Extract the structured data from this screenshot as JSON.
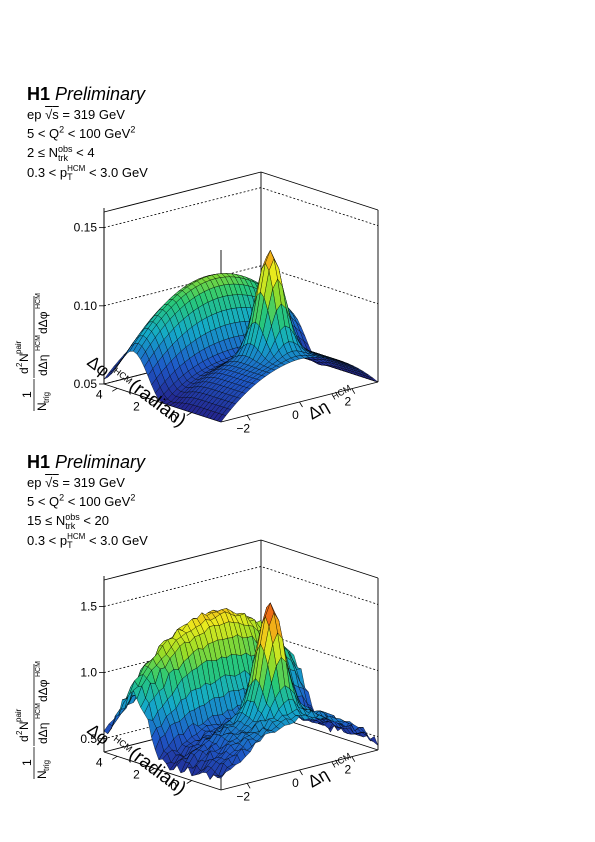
{
  "chart_data": [
    {
      "type": "surface3d",
      "experiment": "H1",
      "status": "Preliminary",
      "lines": {
        "beam": "ep",
        "sqrt_s_label": "s",
        "sqrt_s_value": "= 319 GeV",
        "q2_pre": "5 < Q",
        "q2_exp": "2",
        "q2_post": " < 100 GeV",
        "q2_unit_exp": "2",
        "ntrk_pre": "2 ≤ N",
        "ntrk_sup": "obs",
        "ntrk_sub": "trk",
        "ntrk_post": " < 4",
        "pt_pre": "0.3 < p",
        "pt_sup": "HCM",
        "pt_sub": "T",
        "pt_post": " < 3.0 GeV"
      },
      "zlabel": "1/N_trig d²N^pair/dΔη^HCM dΔφ^HCM",
      "xlabel": "Δη",
      "xlabel_sup": "HCM",
      "ylabel": "Δφ",
      "ylabel_sup": "HCM",
      "ylabel_unit": "(radian)",
      "x_ticks": [
        "−2",
        "0",
        "2"
      ],
      "x_tick_values": [
        -2,
        0,
        2
      ],
      "y_ticks": [
        "0",
        "2",
        "4"
      ],
      "y_tick_values": [
        0,
        2,
        4
      ],
      "z_ticks": [
        "0.05",
        "0.10",
        "0.15"
      ],
      "z_tick_values": [
        0.05,
        0.1,
        0.15
      ],
      "xlim": [
        -3.0,
        3.0
      ],
      "ylim": [
        -1.5708,
        4.7124
      ],
      "zlim": [
        0.05,
        0.16
      ],
      "model": {
        "base": 0.077,
        "peak_height": 0.064,
        "peak_sx": 0.38,
        "peak_sy": 0.5,
        "ridge_height": 0.036,
        "ridge_center": 3.1416,
        "ridge_sy": 0.75,
        "eta_falloff": 0.012,
        "noise": 0.0
      }
    },
    {
      "type": "surface3d",
      "experiment": "H1",
      "status": "Preliminary",
      "lines": {
        "beam": "ep",
        "sqrt_s_label": "s",
        "sqrt_s_value": "= 319 GeV",
        "q2_pre": "5 < Q",
        "q2_exp": "2",
        "q2_post": " < 100 GeV",
        "q2_unit_exp": "2",
        "ntrk_pre": "15 ≤ N",
        "ntrk_sup": "obs",
        "ntrk_sub": "trk",
        "ntrk_post": " < 20",
        "pt_pre": "0.3 < p",
        "pt_sup": "HCM",
        "pt_sub": "T",
        "pt_post": " < 3.0 GeV"
      },
      "zlabel": "1/N_trig d²N^pair/dΔη^HCM dΔφ^HCM",
      "xlabel": "Δη",
      "xlabel_sup": "HCM",
      "ylabel": "Δφ",
      "ylabel_sup": "HCM",
      "ylabel_unit": "(radian)",
      "x_ticks": [
        "−2",
        "0",
        "2"
      ],
      "x_tick_values": [
        -2,
        0,
        2
      ],
      "y_ticks": [
        "0",
        "2",
        "4"
      ],
      "y_tick_values": [
        0,
        2,
        4
      ],
      "z_ticks": [
        "0.5",
        "1.0",
        "1.5"
      ],
      "z_tick_values": [
        0.5,
        1.0,
        1.5
      ],
      "xlim": [
        -3.0,
        3.0
      ],
      "ylim": [
        -1.5708,
        4.7124
      ],
      "zlim": [
        0.4,
        1.7
      ],
      "model": {
        "base": 0.78,
        "peak_height": 0.82,
        "peak_sx": 0.38,
        "peak_sy": 0.5,
        "ridge_height": 0.6,
        "ridge_center": 3.1416,
        "ridge_sy": 0.8,
        "eta_falloff": 0.14,
        "noise": 0.07
      }
    }
  ]
}
